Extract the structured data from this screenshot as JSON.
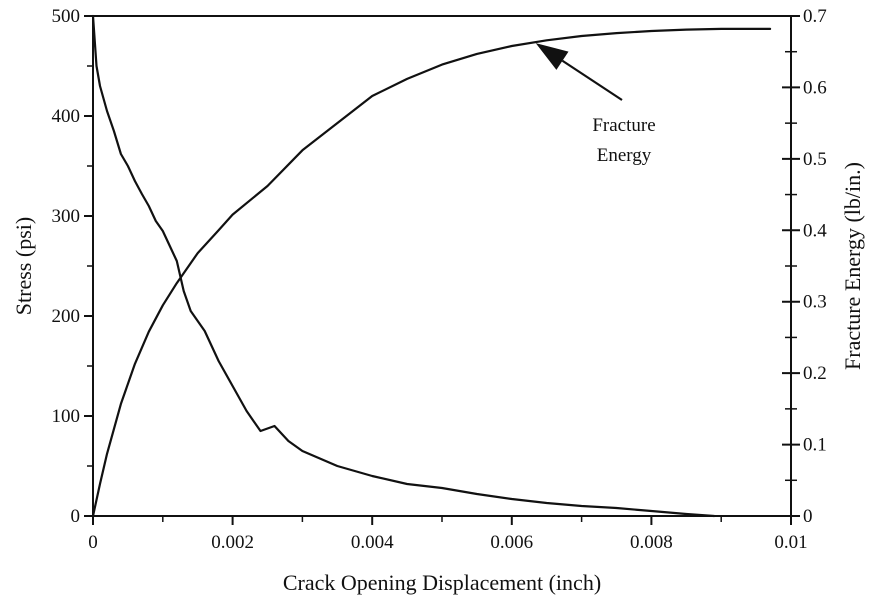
{
  "chart_data": {
    "type": "line",
    "title": "",
    "xlabel": "Crack Opening Displacement (inch)",
    "ylabel": "Stress (psi)",
    "y2label": "Fracture Energy (lb/in.)",
    "xlim": [
      0,
      0.01
    ],
    "ylim": [
      0,
      500
    ],
    "y2lim": [
      0,
      0.7
    ],
    "x_ticks": [
      "0",
      "0.002",
      "0.004",
      "0.006",
      "0.008",
      "0.01"
    ],
    "y_ticks": [
      "0",
      "100",
      "200",
      "300",
      "400",
      "500"
    ],
    "y2_ticks": [
      "0",
      "0.1",
      "0.2",
      "0.3",
      "0.4",
      "0.5",
      "0.6",
      "0.7"
    ],
    "grid": false,
    "series": [
      {
        "axis": "left",
        "x": [
          0,
          5e-05,
          0.0001,
          0.0002,
          0.0003,
          0.0004,
          0.0005,
          0.0006,
          0.0007,
          0.0008,
          0.0009,
          0.001,
          0.0011,
          0.0012,
          0.0013,
          0.0014,
          0.0016,
          0.0018,
          0.002,
          0.0022,
          0.0023,
          0.0024,
          0.0026,
          0.0028,
          0.003,
          0.0035,
          0.004,
          0.0045,
          0.005,
          0.0055,
          0.006,
          0.0065,
          0.007,
          0.0075,
          0.008,
          0.0085,
          0.0089
        ],
        "values": [
          500,
          450,
          430,
          405,
          385,
          362,
          350,
          335,
          322,
          310,
          295,
          285,
          270,
          255,
          225,
          205,
          185,
          155,
          130,
          105,
          95,
          85,
          90,
          75,
          65,
          50,
          40,
          32,
          28,
          22,
          17,
          13,
          10,
          8,
          5,
          2,
          0
        ]
      },
      {
        "axis": "right",
        "x": [
          0,
          0.0001,
          0.0002,
          0.0004,
          0.0006,
          0.0008,
          0.001,
          0.0012,
          0.0015,
          0.0018,
          0.002,
          0.0025,
          0.003,
          0.0035,
          0.004,
          0.0045,
          0.005,
          0.0055,
          0.006,
          0.0065,
          0.007,
          0.0075,
          0.008,
          0.0085,
          0.009,
          0.0097
        ],
        "values": [
          0,
          0.045,
          0.087,
          0.157,
          0.213,
          0.258,
          0.295,
          0.326,
          0.368,
          0.4,
          0.422,
          0.462,
          0.512,
          0.55,
          0.588,
          0.612,
          0.632,
          0.647,
          0.658,
          0.666,
          0.672,
          0.676,
          0.679,
          0.681,
          0.682,
          0.682
        ]
      }
    ],
    "annotations": [
      {
        "text_lines": [
          "Fracture",
          "Energy"
        ],
        "arrow_to": [
          0.0064,
          0.655
        ]
      }
    ]
  }
}
